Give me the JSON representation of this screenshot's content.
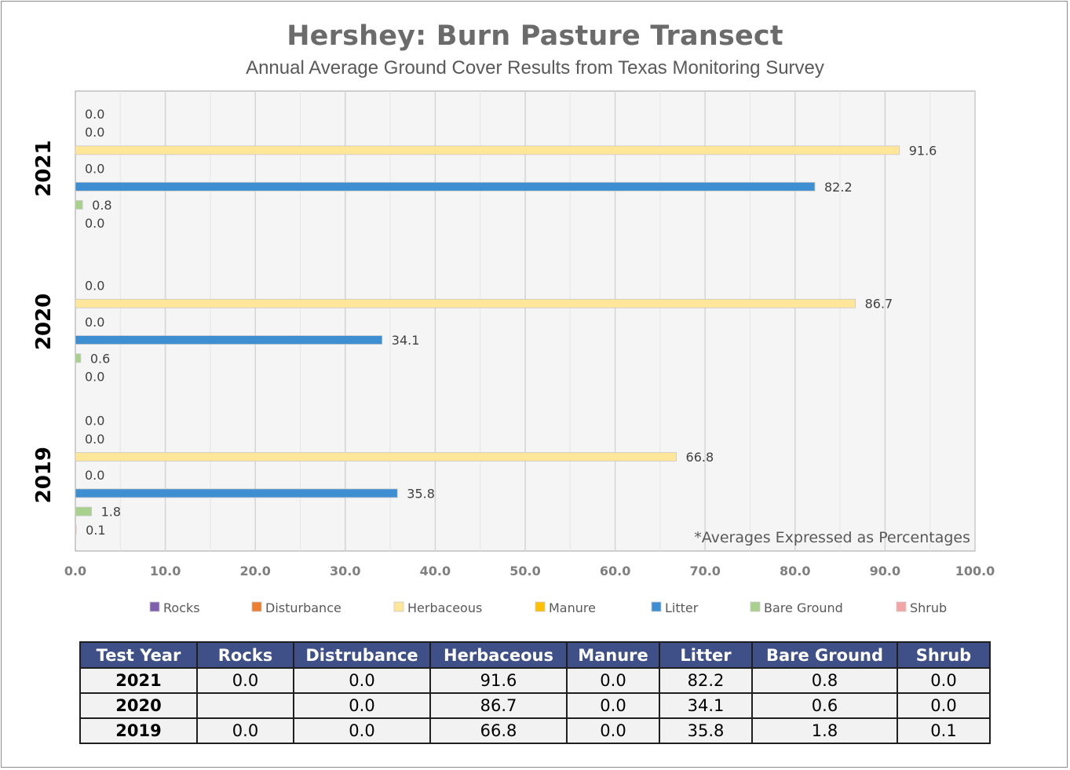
{
  "chart_data": {
    "type": "bar",
    "orientation": "horizontal",
    "title": "Hershey: Burn Pasture Transect",
    "subtitle": "Annual Average Ground Cover Results from Texas Monitoring Survey",
    "note": "*Averages Expressed as Percentages",
    "categories": [
      "2021",
      "2020",
      "2019"
    ],
    "xlim": [
      0,
      100
    ],
    "xticks": [
      "0.0",
      "10.0",
      "20.0",
      "30.0",
      "40.0",
      "50.0",
      "60.0",
      "70.0",
      "80.0",
      "90.0",
      "100.0"
    ],
    "grid": true,
    "legend_position": "bottom",
    "series": [
      {
        "name": "Rocks",
        "color": "#7f5fad",
        "values": [
          0.0,
          null,
          0.0
        ],
        "labels": [
          "0.0",
          "",
          "0.0"
        ]
      },
      {
        "name": "Disturbance",
        "color": "#ed7d31",
        "values": [
          0.0,
          0.0,
          0.0
        ],
        "labels": [
          "0.0",
          "0.0",
          "0.0"
        ]
      },
      {
        "name": "Herbaceous",
        "color": "#ffe699",
        "values": [
          91.6,
          86.7,
          66.8
        ],
        "labels": [
          "91.6",
          "86.7",
          "66.8"
        ]
      },
      {
        "name": "Manure",
        "color": "#ffc000",
        "values": [
          0.0,
          0.0,
          0.0
        ],
        "labels": [
          "0.0",
          "0.0",
          "0.0"
        ]
      },
      {
        "name": "Litter",
        "color": "#3e8fd2",
        "values": [
          82.2,
          34.1,
          35.8
        ],
        "labels": [
          "82.2",
          "34.1",
          "35.8"
        ]
      },
      {
        "name": "Bare Ground",
        "color": "#a9d18e",
        "values": [
          0.8,
          0.6,
          1.8
        ],
        "labels": [
          "0.8",
          "0.6",
          "1.8"
        ]
      },
      {
        "name": "Shrub",
        "color": "#f4a6a6",
        "values": [
          0.0,
          0.0,
          0.1
        ],
        "labels": [
          "0.0",
          "0.0",
          "0.1"
        ]
      }
    ]
  },
  "table": {
    "headers": [
      "Test Year",
      "Rocks",
      "Distrubance",
      "Herbaceous",
      "Manure",
      "Litter",
      "Bare Ground",
      "Shrub"
    ],
    "rows": [
      [
        "2021",
        "0.0",
        "0.0",
        "91.6",
        "0.0",
        "82.2",
        "0.8",
        "0.0"
      ],
      [
        "2020",
        "",
        "0.0",
        "86.7",
        "0.0",
        "34.1",
        "0.6",
        "0.0"
      ],
      [
        "2019",
        "0.0",
        "0.0",
        "66.8",
        "0.0",
        "35.8",
        "1.8",
        "0.1"
      ]
    ]
  }
}
